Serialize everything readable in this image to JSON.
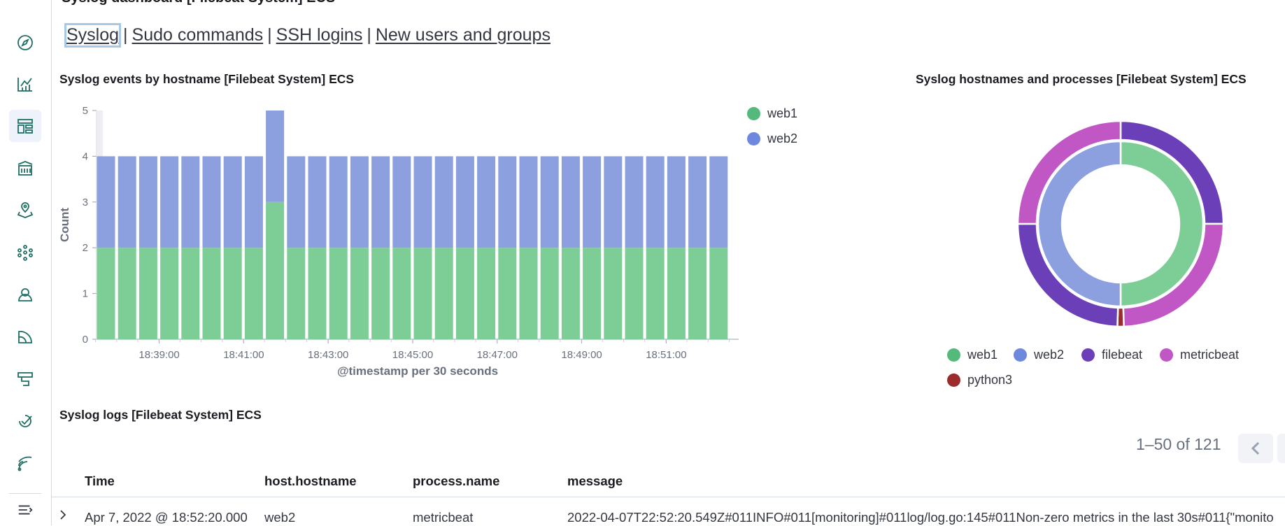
{
  "dashboard_title_partial": "Syslog dashboard [Filebeat System] ECS",
  "nav": {
    "links": [
      "Syslog",
      "Sudo commands",
      "SSH logins",
      "New users and groups"
    ]
  },
  "sidebar": {
    "items": [
      {
        "icon": "compass-icon"
      },
      {
        "icon": "visualize-icon"
      },
      {
        "icon": "dashboard-icon"
      },
      {
        "icon": "canvas-icon"
      },
      {
        "icon": "maps-icon"
      },
      {
        "icon": "ml-icon"
      },
      {
        "icon": "graph-icon"
      },
      {
        "icon": "observability-icon"
      },
      {
        "icon": "uptime-icon"
      },
      {
        "icon": "apm-icon"
      },
      {
        "icon": "logs-icon"
      }
    ],
    "collapse_icon": "menu-collapse-icon"
  },
  "bar_panel": {
    "title": "Syslog events by hostname [Filebeat System] ECS"
  },
  "donut_panel": {
    "title": "Syslog hostnames and processes [Filebeat System] ECS"
  },
  "colors": {
    "web1": "#7dcd97",
    "web2": "#8c9fdf",
    "filebeat": "#6a3fb8",
    "metricbeat": "#c157c5",
    "python3": "#9c2b2b",
    "grid": "#e5e9f0"
  },
  "chart_data": [
    {
      "type": "bar",
      "stacked": true,
      "title": "Syslog events by hostname [Filebeat System] ECS",
      "xlabel": "@timestamp per 30 seconds",
      "ylabel": "Count",
      "ylim": [
        0,
        5
      ],
      "yticks": [
        "0",
        "1",
        "2",
        "3",
        "4",
        "5"
      ],
      "xticks": [
        "18:39:00",
        "18:41:00",
        "18:43:00",
        "18:45:00",
        "18:47:00",
        "18:49:00",
        "18:51:00"
      ],
      "legend_position": "top-right",
      "categories": [
        "18:37:30",
        "18:38:00",
        "18:38:30",
        "18:39:00",
        "18:39:30",
        "18:40:00",
        "18:40:30",
        "18:41:00",
        "18:41:30",
        "18:42:00",
        "18:42:30",
        "18:43:00",
        "18:43:30",
        "18:44:00",
        "18:44:30",
        "18:45:00",
        "18:45:30",
        "18:46:00",
        "18:46:30",
        "18:47:00",
        "18:47:30",
        "18:48:00",
        "18:48:30",
        "18:49:00",
        "18:49:30",
        "18:50:00",
        "18:50:30",
        "18:51:00",
        "18:51:30",
        "18:52:00"
      ],
      "series": [
        {
          "name": "web1",
          "values": [
            2,
            2,
            2,
            2,
            2,
            2,
            2,
            2,
            3,
            2,
            2,
            2,
            2,
            2,
            2,
            2,
            2,
            2,
            2,
            2,
            2,
            2,
            2,
            2,
            2,
            2,
            2,
            2,
            2,
            2
          ]
        },
        {
          "name": "web2",
          "values": [
            2,
            2,
            2,
            2,
            2,
            2,
            2,
            2,
            2,
            2,
            2,
            2,
            2,
            2,
            2,
            2,
            2,
            2,
            2,
            2,
            2,
            2,
            2,
            2,
            2,
            2,
            2,
            2,
            2,
            2
          ]
        }
      ]
    },
    {
      "type": "pie",
      "donut": true,
      "title": "Syslog hostnames and processes [Filebeat System] ECS",
      "inner": [
        {
          "name": "web1",
          "value": 0.5
        },
        {
          "name": "web2",
          "value": 0.5
        }
      ],
      "outer": [
        {
          "name": "filebeat",
          "value": 0.25
        },
        {
          "name": "metricbeat",
          "value": 0.245
        },
        {
          "name": "python3",
          "value": 0.01
        },
        {
          "name": "filebeat",
          "value": 0.245
        },
        {
          "name": "metricbeat",
          "value": 0.25
        }
      ],
      "legend": [
        "web1",
        "web2",
        "filebeat",
        "metricbeat",
        "python3"
      ],
      "legend_position": "bottom"
    }
  ],
  "logs_panel": {
    "title": "Syslog logs [Filebeat System] ECS",
    "pagination": "1–50 of 121",
    "columns": [
      "Time",
      "host.hostname",
      "process.name",
      "message"
    ],
    "rows": [
      [
        "Apr 7, 2022 @ 18:52:20.000",
        "web2",
        "metricbeat",
        "2022-04-07T22:52:20.549Z#011INFO#011[monitoring]#011log/log.go:145#011Non-zero metrics in the last 30s#011{\"monito"
      ]
    ]
  }
}
